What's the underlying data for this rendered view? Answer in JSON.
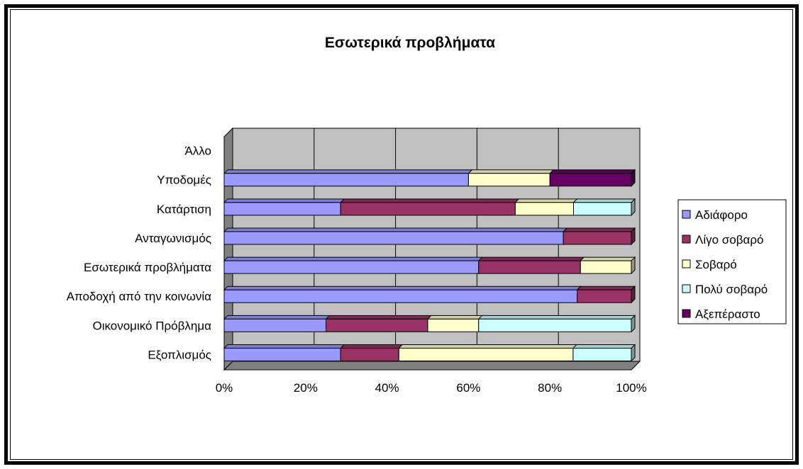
{
  "chart_data": {
    "type": "bar",
    "orientation": "horizontal",
    "stacked": "100%",
    "title": "Εσωτερικά προβλήματα",
    "categories": [
      "Εξοπλισμός",
      "Οικονομικό Πρόβλημα",
      "Αποδοχή από την κοινωνία",
      "Εσωτερικά προβλήματα",
      "Ανταγωνισμός",
      "Κατάρτιση",
      "Υποδομές",
      "Άλλο"
    ],
    "series": [
      {
        "name": "Αδιάφορο",
        "color": "#9999ff",
        "values": [
          28.6,
          25,
          86.7,
          62.5,
          83.3,
          28.6,
          60,
          0
        ]
      },
      {
        "name": "Λίγο σοβαρό",
        "color": "#993366",
        "values": [
          14.3,
          25,
          13.3,
          25,
          16.7,
          42.9,
          0,
          0
        ]
      },
      {
        "name": "Σοβαρό",
        "color": "#ffffcc",
        "values": [
          42.8,
          12.5,
          0,
          12.5,
          0,
          14.3,
          20,
          0
        ]
      },
      {
        "name": "Πολύ σοβαρό",
        "color": "#ccffff",
        "values": [
          14.3,
          37.5,
          0,
          0,
          0,
          14.2,
          0,
          0
        ]
      },
      {
        "name": "Αξεπέραστο",
        "color": "#660066",
        "values": [
          0,
          0,
          0,
          0,
          0,
          0,
          20,
          0
        ]
      }
    ],
    "x_ticks": [
      "0%",
      "20%",
      "40%",
      "60%",
      "80%",
      "100%"
    ],
    "xlim": [
      0,
      100
    ],
    "plot_background": "#c0c0c0",
    "grid": true,
    "legend_position": "right"
  }
}
